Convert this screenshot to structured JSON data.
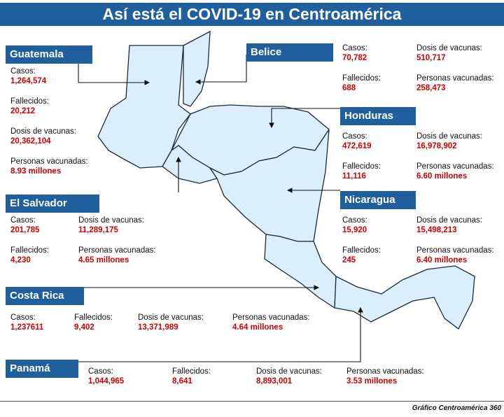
{
  "title": "Así está el COVID-19 en Centroamérica",
  "credit": "Gráfico Centroamérica 360",
  "colors": {
    "banner": "#1f5f9e",
    "value": "#d40000",
    "land": "#dbeefb",
    "border": "#1a2a3a"
  },
  "labels": {
    "casos": "Casos:",
    "fallecidos": "Fallecidos:",
    "dosis": "Dosis de vacunas:",
    "personas": "Personas vacunadas:"
  },
  "countries": {
    "guatemala": {
      "name": "Guatemala",
      "casos": "1,264,574",
      "fallecidos": "20,212",
      "dosis": "20,362,104",
      "personas": "8.93 millones"
    },
    "belice": {
      "name": "Belice",
      "casos": "70,782",
      "fallecidos": "688",
      "dosis": "510,717",
      "personas": "258,473"
    },
    "honduras": {
      "name": "Honduras",
      "casos": "472,619",
      "fallecidos": "11,116",
      "dosis": "16,978,902",
      "personas": "6.60 millones"
    },
    "el_salvador": {
      "name": "El Salvador",
      "casos": "201,785",
      "fallecidos": "4,230",
      "dosis": "11,289,175",
      "personas": "4.65 millones"
    },
    "nicaragua": {
      "name": "Nicaragua",
      "casos": "15,920",
      "fallecidos": "245",
      "dosis": "15,498,213",
      "personas": "6.40 millones"
    },
    "costa_rica": {
      "name": "Costa Rica",
      "casos": "1,237611",
      "fallecidos": "9,402",
      "dosis": "13,371,989",
      "personas": "4.64 millones"
    },
    "panama": {
      "name": "Panamá",
      "casos": "1,044,965",
      "fallecidos": "8,641",
      "dosis": "8,893,001",
      "personas": "3.53 millones"
    }
  }
}
